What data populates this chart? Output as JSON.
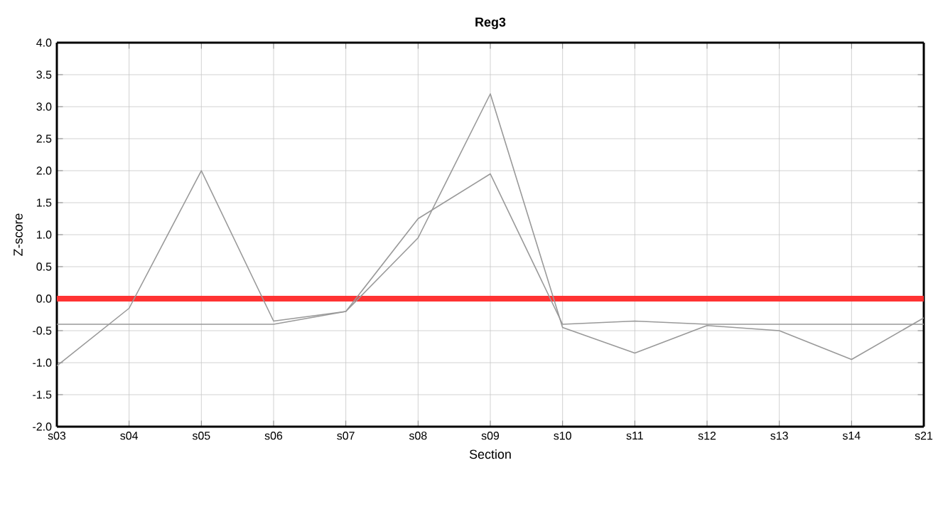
{
  "chart_data": {
    "type": "line",
    "title": "Reg3",
    "xlabel": "Section",
    "ylabel": "Z-score",
    "categories": [
      "s03",
      "s04",
      "s05",
      "s06",
      "s07",
      "s08",
      "s09",
      "s10",
      "s11",
      "s12",
      "s13",
      "s14",
      "s21"
    ],
    "series": [
      {
        "color": "#999999",
        "values": [
          -0.4,
          -0.4,
          -0.4,
          -0.4,
          -0.2,
          1.25,
          1.95,
          -0.4,
          -0.35,
          -0.4,
          -0.4,
          -0.4,
          -0.4
        ]
      },
      {
        "color": "#999999",
        "values": [
          -1.05,
          -0.15,
          2.0,
          -0.35,
          -0.2,
          0.95,
          3.2,
          -0.45,
          -0.85,
          -0.42,
          -0.5,
          -0.95,
          -0.3
        ]
      }
    ],
    "ylim": [
      -2,
      4
    ],
    "yticks": [
      {
        "value": -2,
        "label": "-2.0"
      },
      {
        "value": -1.5,
        "label": "-1.5"
      },
      {
        "value": -1,
        "label": "-1.0"
      },
      {
        "value": -0.5,
        "label": "-0.5"
      },
      {
        "value": 0,
        "label": "0.0"
      },
      {
        "value": 0.5,
        "label": "0.5"
      },
      {
        "value": 1,
        "label": "1.0"
      },
      {
        "value": 1.5,
        "label": "1.5"
      },
      {
        "value": 2,
        "label": "2.0"
      },
      {
        "value": 2.5,
        "label": "2.5"
      },
      {
        "value": 3,
        "label": "3.0"
      },
      {
        "value": 3.5,
        "label": "3.5"
      },
      {
        "value": 4,
        "label": "4.0"
      }
    ],
    "ref_lines": [
      {
        "axis": "y",
        "value": 0,
        "color": "#ff3333"
      }
    ],
    "grid": true,
    "marker": "none",
    "line_style": "solid"
  }
}
